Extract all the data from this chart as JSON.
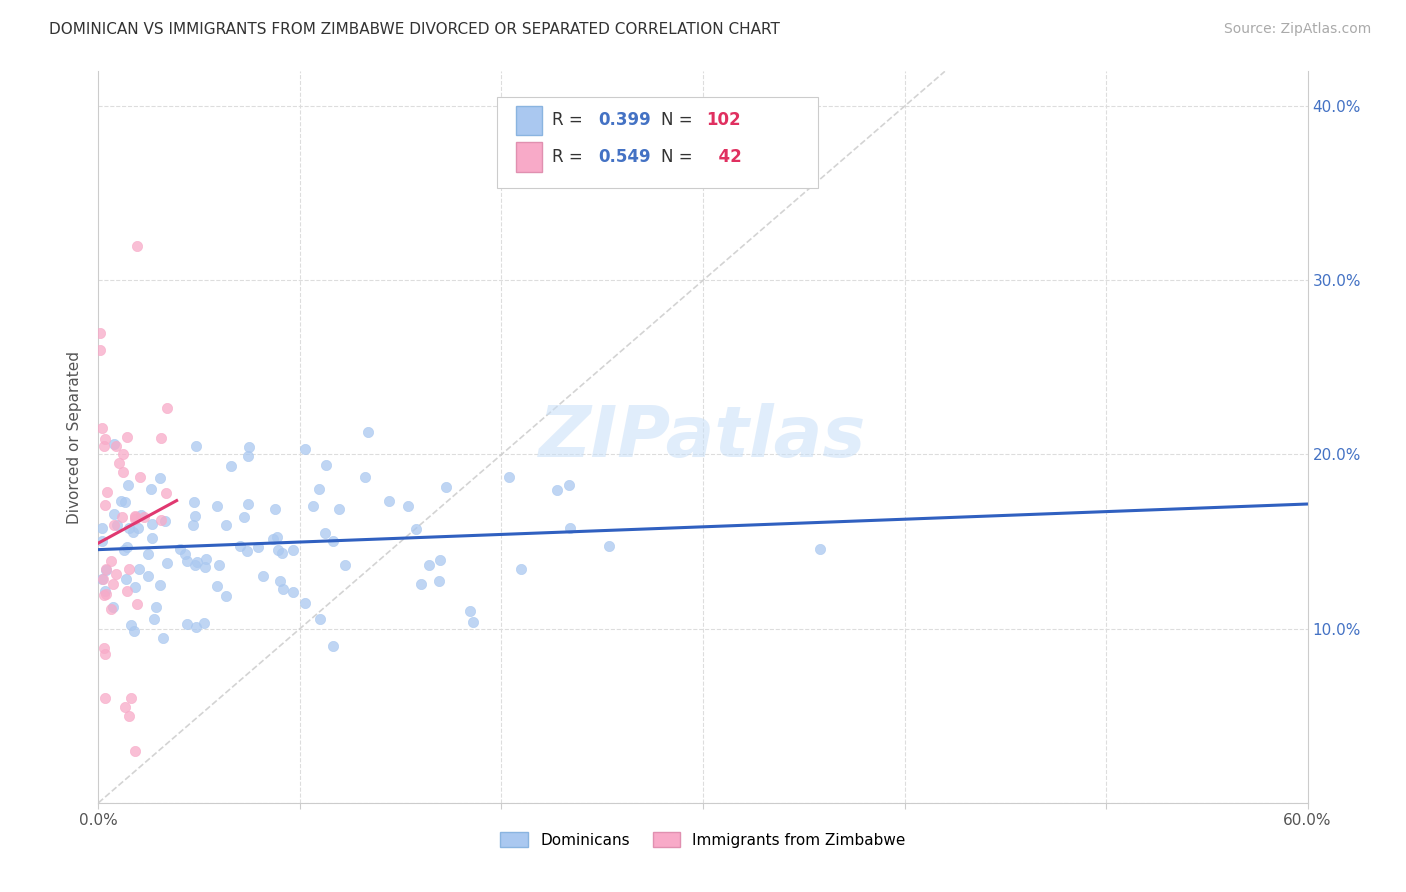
{
  "title": "DOMINICAN VS IMMIGRANTS FROM ZIMBABWE DIVORCED OR SEPARATED CORRELATION CHART",
  "source": "Source: ZipAtlas.com",
  "ylabel": "Divorced or Separated",
  "legend1_label": "Dominicans",
  "legend2_label": "Immigrants from Zimbabwe",
  "R1": 0.399,
  "N1": 102,
  "R2": 0.549,
  "N2": 42,
  "color1": "#aac8f0",
  "color2": "#f8aac8",
  "line1_color": "#3060c0",
  "line2_color": "#e03870",
  "diag_color": "#cccccc",
  "xlim": [
    0.0,
    0.6
  ],
  "ylim": [
    0.0,
    0.42
  ],
  "background_color": "#ffffff",
  "grid_color": "#dddddd",
  "watermark": "ZIPatlas",
  "title_fontsize": 11,
  "source_fontsize": 10,
  "axis_label_fontsize": 11,
  "tick_fontsize": 11,
  "legend_fontsize": 11
}
